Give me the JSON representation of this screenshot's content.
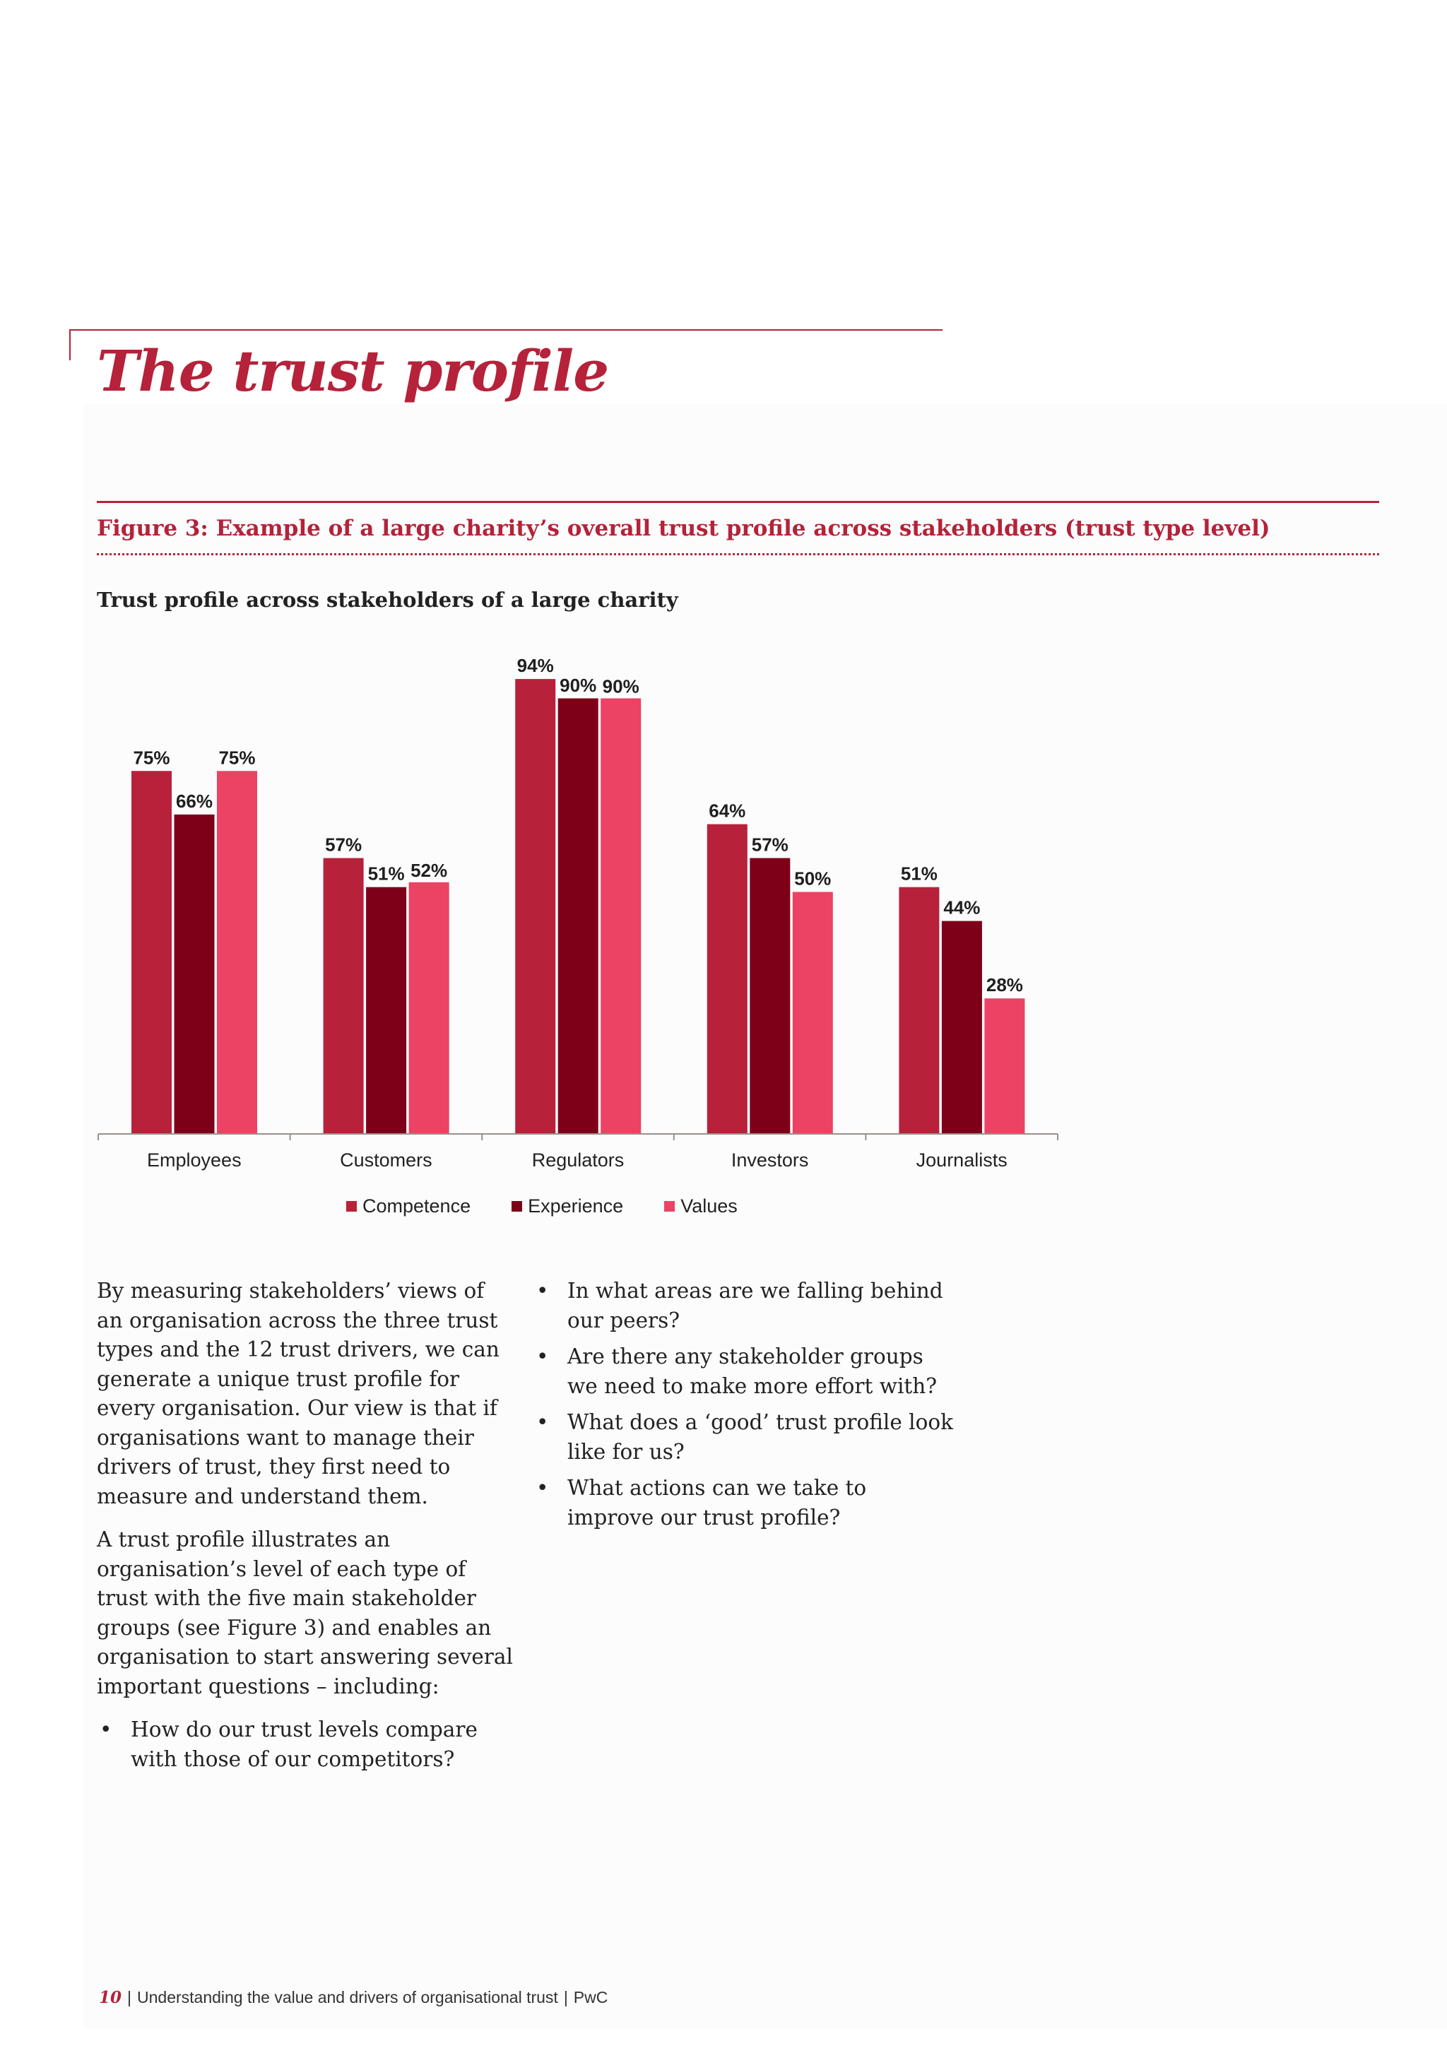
{
  "page": {
    "title": "The trust profile",
    "figure_caption": "Figure 3: Example of a large charity’s overall trust profile across stakeholders (trust type level)",
    "chart_heading": "Trust profile across stakeholders of a large charity"
  },
  "colors": {
    "accent": "#b5223a",
    "competence": "#b8213a",
    "experience": "#7d0018",
    "values": "#ec4264"
  },
  "chart_data": {
    "type": "bar",
    "title": "Trust profile across stakeholders of a large charity",
    "categories": [
      "Employees",
      "Customers",
      "Regulators",
      "Investors",
      "Journalists"
    ],
    "series": [
      {
        "name": "Competence",
        "values": [
          75,
          57,
          94,
          64,
          51
        ]
      },
      {
        "name": "Experience",
        "values": [
          66,
          51,
          90,
          57,
          44
        ]
      },
      {
        "name": "Values",
        "values": [
          75,
          52,
          90,
          50,
          28
        ]
      }
    ],
    "value_suffix": "%",
    "ylim": [
      0,
      100
    ],
    "grid": false,
    "legend_position": "bottom"
  },
  "body": {
    "left_paragraphs": [
      "By measuring stakeholders’ views of an organisation across the three trust types and the 12 trust drivers, we can generate a unique trust profile for every organisation. Our view is that if organisations want to manage their drivers of trust, they first need to measure and understand them.",
      "A trust profile illustrates an organisation’s level of each type of trust with the five main stakeholder groups (see Figure 3) and enables an organisation to start answering several important questions – including:"
    ],
    "left_bullets": [
      "How do our trust levels compare with those of our competitors?"
    ],
    "right_bullets": [
      "In what areas are we falling behind our peers?",
      "Are there any stakeholder groups we need to make more effort with?",
      "What does a ‘good’ trust profile look like for us?",
      "What actions can we take to improve our trust profile?"
    ]
  },
  "footer": {
    "page_number": "10",
    "text": "Understanding the value and drivers of organisational trust",
    "brand": "PwC"
  }
}
